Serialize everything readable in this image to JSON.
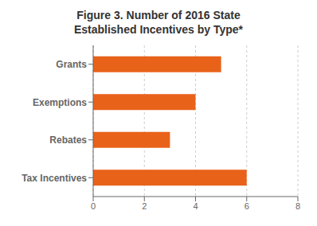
{
  "chart_data": {
    "type": "bar",
    "title": "Figure 3. Number of 2016 State\nEstablished Incentives by Type*",
    "categories": [
      "Tax Incentives",
      "Rebates",
      "Exemptions",
      "Grants"
    ],
    "values": [
      6,
      3,
      4,
      5
    ],
    "color": "#E8621A",
    "orientation": "horizontal",
    "xlim": [
      0,
      8
    ],
    "xticks": [
      0,
      2,
      4,
      6,
      8
    ],
    "grid": true
  }
}
